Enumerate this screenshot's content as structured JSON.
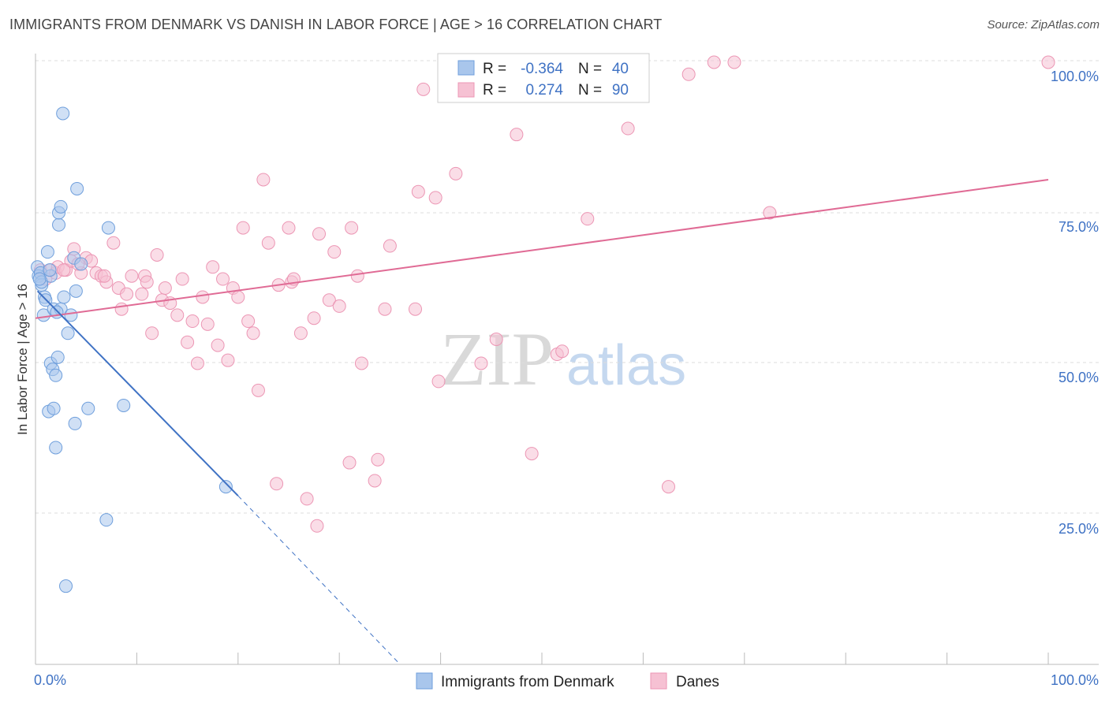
{
  "title": "IMMIGRANTS FROM DENMARK VS DANISH IN LABOR FORCE | AGE > 16 CORRELATION CHART",
  "source": "Source: ZipAtlas.com",
  "watermark": {
    "zip": "ZIP",
    "atlas": "atlas"
  },
  "legend": {
    "rows": [
      {
        "r_label": "R =",
        "r_value": "-0.364",
        "n_label": "N =",
        "n_value": "40"
      },
      {
        "r_label": "R =",
        "r_value": " 0.274",
        "n_label": "N =",
        "n_value": "90"
      }
    ]
  },
  "colors": {
    "blue": "#3f72c4",
    "blue_fill": "#a9c6ec",
    "blue_stroke": "#6f9fdc",
    "pink": "#e06b95",
    "pink_fill": "#f6c1d3",
    "pink_stroke": "#ec96b4"
  },
  "chart_data": {
    "type": "scatter",
    "title": "IMMIGRANTS FROM DENMARK VS DANISH IN LABOR FORCE | AGE > 16 CORRELATION CHART",
    "xlabel": "",
    "ylabel": "In Labor Force | Age > 16",
    "xlim": [
      0,
      100
    ],
    "ylim": [
      0,
      100
    ],
    "x_tick_labels": [
      "0.0%",
      "100.0%"
    ],
    "y_tick_labels": [
      "25.0%",
      "50.0%",
      "75.0%",
      "100.0%"
    ],
    "y_ticks": [
      25,
      50,
      75,
      100
    ],
    "series": [
      {
        "name": "Immigrants from Denmark",
        "color": "#3f72c4",
        "trend": {
          "x0": 0.2,
          "y0": 62,
          "x1": 20,
          "y1": 28,
          "dash_x1": 36,
          "dash_y1": 0
        },
        "points": [
          [
            0.2,
            66
          ],
          [
            0.3,
            64.5
          ],
          [
            0.5,
            65
          ],
          [
            0.6,
            63
          ],
          [
            0.6,
            63.5
          ],
          [
            0.8,
            58
          ],
          [
            0.9,
            61
          ],
          [
            1,
            60.5
          ],
          [
            1.2,
            68.5
          ],
          [
            1.3,
            42
          ],
          [
            1.5,
            64.5
          ],
          [
            1.5,
            50
          ],
          [
            1.7,
            49
          ],
          [
            1.8,
            42.5
          ],
          [
            1.8,
            59
          ],
          [
            2,
            36
          ],
          [
            2,
            48
          ],
          [
            2.2,
            51
          ],
          [
            2.3,
            73
          ],
          [
            2.3,
            75
          ],
          [
            2.5,
            76
          ],
          [
            2.5,
            59
          ],
          [
            2.7,
            91.5
          ],
          [
            2.8,
            61
          ],
          [
            3,
            13
          ],
          [
            3.2,
            55
          ],
          [
            3.5,
            58
          ],
          [
            3.8,
            67.5
          ],
          [
            3.9,
            40
          ],
          [
            4,
            62
          ],
          [
            4.1,
            79
          ],
          [
            4.5,
            66.5
          ],
          [
            5.2,
            42.5
          ],
          [
            7,
            24
          ],
          [
            7.2,
            72.5
          ],
          [
            8.7,
            43
          ],
          [
            18.8,
            29.5
          ],
          [
            0.4,
            64
          ],
          [
            1.4,
            65.5
          ],
          [
            2.1,
            58.5
          ]
        ]
      },
      {
        "name": "Danes",
        "color": "#e06b95",
        "trend": {
          "x0": 0,
          "y0": 57.5,
          "x1": 100,
          "y1": 80.5
        },
        "points": [
          [
            0.5,
            65.5
          ],
          [
            1,
            64
          ],
          [
            1.5,
            65.5
          ],
          [
            2,
            65
          ],
          [
            2.2,
            66
          ],
          [
            3,
            65.5
          ],
          [
            3.5,
            67
          ],
          [
            3.8,
            69
          ],
          [
            4.5,
            65
          ],
          [
            5,
            67.5
          ],
          [
            5.5,
            67
          ],
          [
            6,
            65
          ],
          [
            6.5,
            64.5
          ],
          [
            7,
            63.5
          ],
          [
            7.7,
            70
          ],
          [
            8.2,
            62.5
          ],
          [
            8.5,
            59
          ],
          [
            9,
            61.5
          ],
          [
            9.5,
            64.5
          ],
          [
            10.5,
            61.5
          ],
          [
            10.8,
            64.5
          ],
          [
            11,
            63.5
          ],
          [
            11.5,
            55
          ],
          [
            12,
            68
          ],
          [
            12.5,
            60.5
          ],
          [
            12.8,
            62.5
          ],
          [
            13.3,
            60
          ],
          [
            14,
            58
          ],
          [
            14.5,
            64
          ],
          [
            15,
            53.5
          ],
          [
            15.5,
            57
          ],
          [
            16,
            50
          ],
          [
            16.5,
            61
          ],
          [
            17,
            56.5
          ],
          [
            17.5,
            66
          ],
          [
            18,
            53
          ],
          [
            18.5,
            64
          ],
          [
            19,
            50.5
          ],
          [
            19.5,
            62.5
          ],
          [
            20,
            61
          ],
          [
            20.5,
            72.5
          ],
          [
            21,
            57
          ],
          [
            21.5,
            55
          ],
          [
            22,
            45.5
          ],
          [
            22.5,
            80.5
          ],
          [
            23,
            70
          ],
          [
            23.8,
            30
          ],
          [
            24,
            63
          ],
          [
            25,
            72.5
          ],
          [
            25.3,
            63.5
          ],
          [
            25.5,
            64
          ],
          [
            26.2,
            55
          ],
          [
            26.8,
            27.5
          ],
          [
            27.5,
            57.5
          ],
          [
            27.8,
            23
          ],
          [
            28,
            71.5
          ],
          [
            29,
            60.5
          ],
          [
            29.5,
            68.5
          ],
          [
            30,
            59.5
          ],
          [
            31,
            33.5
          ],
          [
            31.2,
            72.5
          ],
          [
            31.8,
            64.5
          ],
          [
            32.2,
            50
          ],
          [
            33.5,
            30.5
          ],
          [
            33.8,
            34
          ],
          [
            34.5,
            59
          ],
          [
            35,
            69.5
          ],
          [
            37.5,
            59
          ],
          [
            37.8,
            78.5
          ],
          [
            38.3,
            95.5
          ],
          [
            39.5,
            77.5
          ],
          [
            39.8,
            47
          ],
          [
            41.5,
            81.5
          ],
          [
            44,
            50
          ],
          [
            45.5,
            54
          ],
          [
            47.5,
            88
          ],
          [
            49,
            35
          ],
          [
            51.5,
            51.5
          ],
          [
            52,
            52
          ],
          [
            54.5,
            74
          ],
          [
            58.5,
            89
          ],
          [
            62.5,
            29.5
          ],
          [
            64.5,
            98
          ],
          [
            67,
            100
          ],
          [
            69,
            100
          ],
          [
            72.5,
            75
          ],
          [
            100,
            100
          ],
          [
            2.8,
            65.5
          ],
          [
            4.2,
            66.5
          ],
          [
            6.8,
            64.5
          ]
        ]
      }
    ]
  },
  "bottom_legend": {
    "items": [
      {
        "label": "Immigrants from Denmark"
      },
      {
        "label": "Danes"
      }
    ]
  }
}
